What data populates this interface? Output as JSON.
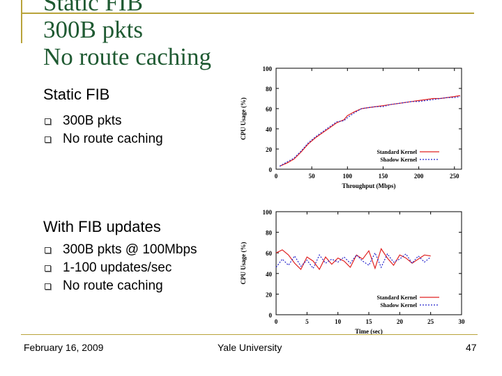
{
  "slide": {
    "title_lines": [
      "Static FIB",
      "300B pkts",
      "No route caching"
    ],
    "section1": {
      "heading": "Static FIB",
      "bullets": [
        "300B pkts",
        "No route caching"
      ]
    },
    "section2": {
      "heading": "With FIB updates",
      "bullets": [
        "300B pkts @ 100Mbps",
        "1-100 updates/sec",
        "No route caching"
      ]
    },
    "footer": {
      "date": "February 16, 2009",
      "org": "Yale University",
      "page": "47"
    },
    "accent_color": "#b8a33a",
    "title_color": "#1f5a32"
  },
  "chart_data": [
    {
      "type": "line",
      "xlabel": "Throughput (Mbps)",
      "ylabel": "CPU Usage (%)",
      "xlim": [
        0,
        260
      ],
      "ylim": [
        0,
        100
      ],
      "xticks": [
        0,
        50,
        100,
        150,
        200,
        250
      ],
      "yticks": [
        0,
        20,
        40,
        60,
        80,
        100
      ],
      "legend": "bottom-right",
      "grid": false,
      "series": [
        {
          "name": "Standard Kernel",
          "color": "#e02020",
          "dash": "solid",
          "x": [
            5,
            15,
            25,
            35,
            45,
            55,
            65,
            75,
            85,
            95,
            100,
            110,
            120,
            130,
            140,
            150,
            160,
            170,
            180,
            190,
            200,
            210,
            220,
            230,
            240,
            250,
            258
          ],
          "y": [
            3,
            6,
            10,
            17,
            25,
            31,
            36,
            41,
            46,
            49,
            53,
            57,
            60,
            61,
            62,
            63,
            64,
            65,
            66,
            67,
            68,
            69,
            70,
            70,
            71,
            72,
            73
          ]
        },
        {
          "name": "Shadow Kernel",
          "color": "#2222cc",
          "dash": "dotted",
          "x": [
            5,
            15,
            25,
            35,
            45,
            55,
            65,
            75,
            85,
            95,
            100,
            110,
            120,
            130,
            140,
            150,
            160,
            170,
            180,
            190,
            200,
            210,
            220,
            230,
            240,
            250,
            258
          ],
          "y": [
            3,
            7,
            11,
            18,
            26,
            32,
            37,
            42,
            47,
            48,
            51,
            56,
            60,
            61,
            62,
            62,
            64,
            65,
            66,
            67,
            67,
            68,
            69,
            70,
            71,
            71,
            72
          ]
        }
      ]
    },
    {
      "type": "line",
      "xlabel": "Time (sec)",
      "ylabel": "CPU Usage (%)",
      "xlim": [
        0,
        30
      ],
      "ylim": [
        0,
        100
      ],
      "xticks": [
        0,
        5,
        10,
        15,
        20,
        25,
        30
      ],
      "yticks": [
        0,
        20,
        40,
        60,
        80,
        100
      ],
      "legend": "bottom-right",
      "grid": false,
      "series": [
        {
          "name": "Standard Kernel",
          "color": "#e02020",
          "dash": "solid",
          "x": [
            0,
            1,
            2,
            3,
            4,
            5,
            6,
            7,
            8,
            9,
            10,
            11,
            12,
            13,
            14,
            15,
            16,
            17,
            18,
            19,
            20,
            21,
            22,
            23,
            24,
            25
          ],
          "y": [
            60,
            63,
            58,
            50,
            44,
            56,
            52,
            44,
            56,
            49,
            55,
            52,
            46,
            58,
            54,
            62,
            45,
            64,
            55,
            48,
            58,
            55,
            50,
            54,
            58,
            57
          ]
        },
        {
          "name": "Shadow Kernel",
          "color": "#2222cc",
          "dash": "dotted",
          "x": [
            0,
            1,
            2,
            3,
            4,
            5,
            6,
            7,
            8,
            9,
            10,
            11,
            12,
            13,
            14,
            15,
            16,
            17,
            18,
            19,
            20,
            21,
            22,
            23,
            24,
            25
          ],
          "y": [
            46,
            54,
            48,
            57,
            47,
            53,
            45,
            58,
            50,
            54,
            51,
            56,
            50,
            58,
            52,
            48,
            60,
            46,
            59,
            51,
            54,
            59,
            50,
            57,
            51,
            56
          ]
        }
      ]
    }
  ]
}
